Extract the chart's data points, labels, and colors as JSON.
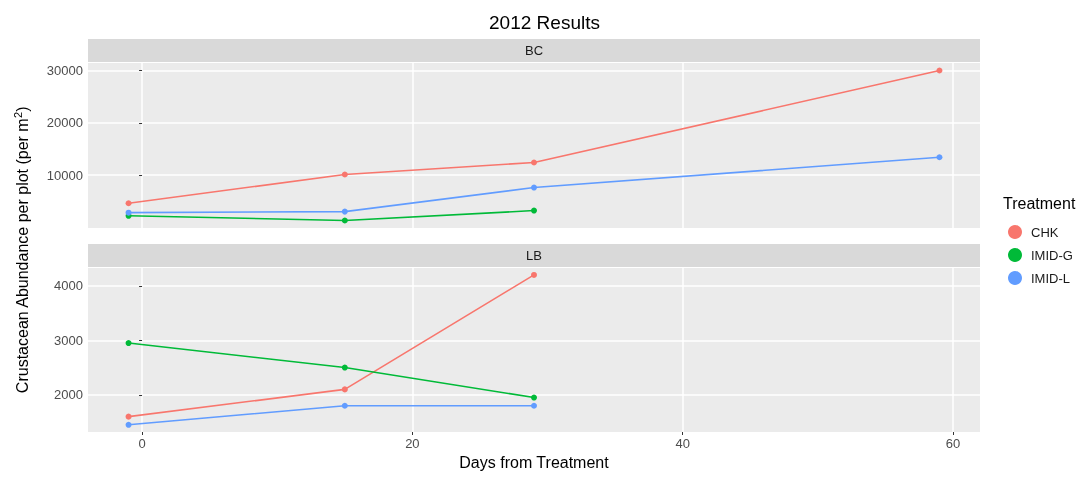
{
  "chart_data": [
    {
      "type": "line",
      "title": "2012 Results",
      "subtitle": "BC",
      "ylabel": "Crustacean Abundance per plot (per m$^{2}$)",
      "legend_title": "Treatment",
      "legend": "right",
      "grid": true,
      "marker": "circle",
      "tick_labels": "y",
      "xlim": [
        -4,
        62
      ],
      "xticks": [
        0,
        20,
        40,
        60
      ],
      "ylim": [
        -135,
        31435
      ],
      "yticks": [
        10000,
        20000,
        30000
      ],
      "series": [
        {
          "name": "CHK",
          "color": "#f8766d",
          "x": [
            -1,
            15,
            29,
            59
          ],
          "values": [
            4600,
            10100,
            12400,
            30000
          ]
        },
        {
          "name": "IMID-G",
          "color": "#00ba38",
          "x": [
            -1,
            15,
            29
          ],
          "values": [
            2200,
            1300,
            3200
          ]
        },
        {
          "name": "IMID-L",
          "color": "#619cff",
          "x": [
            -1,
            15,
            29,
            59
          ],
          "values": [
            2800,
            3000,
            7600,
            13400
          ]
        }
      ]
    },
    {
      "type": "line",
      "subtitle": "LB",
      "xlabel": "Days from Treatment",
      "grid": true,
      "marker": "circle",
      "xlim": [
        -4,
        62
      ],
      "xticks": [
        0,
        20,
        40,
        60
      ],
      "ylim": [
        1318,
        4327
      ],
      "yticks": [
        2000,
        3000,
        4000
      ],
      "series": [
        {
          "color": "#f8766d",
          "x": [
            -1,
            15,
            29
          ],
          "values": [
            1600,
            2100,
            4200
          ]
        },
        {
          "color": "#00ba38",
          "x": [
            -1,
            15,
            29
          ],
          "values": [
            2950,
            2500,
            1950
          ]
        },
        {
          "color": "#619cff",
          "x": [
            -1,
            15,
            29
          ],
          "values": [
            1450,
            1800,
            1800
          ]
        }
      ]
    }
  ]
}
